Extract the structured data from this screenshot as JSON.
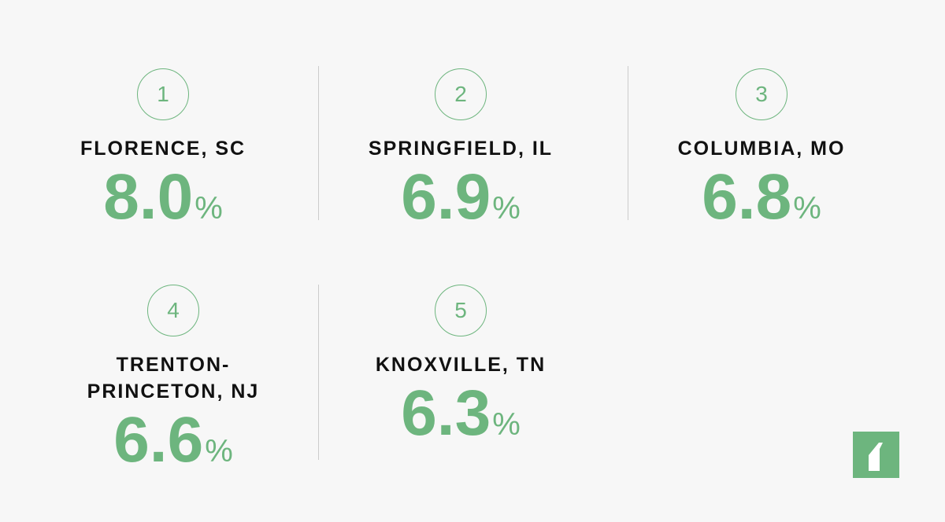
{
  "items": [
    {
      "rank": "1",
      "city": "FLORENCE, SC",
      "value": "8.0",
      "unit": "%"
    },
    {
      "rank": "2",
      "city": "SPRINGFIELD, IL",
      "value": "6.9",
      "unit": "%"
    },
    {
      "rank": "3",
      "city": "COLUMBIA, MO",
      "value": "6.8",
      "unit": "%"
    },
    {
      "rank": "4",
      "city": "TRENTON-PRINCETON, NJ",
      "value": "6.6",
      "unit": "%"
    },
    {
      "rank": "5",
      "city": "KNOXVILLE, TN",
      "value": "6.3",
      "unit": "%"
    }
  ]
}
